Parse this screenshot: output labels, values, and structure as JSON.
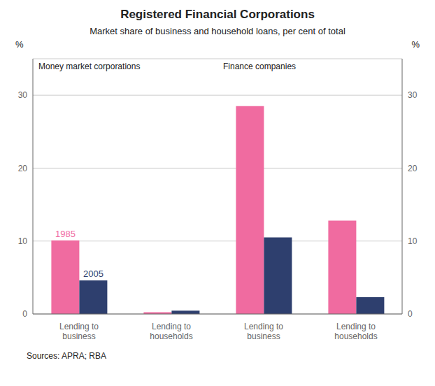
{
  "title": "Registered Financial Corporations",
  "subtitle": "Market share of business and household loans, per cent of total",
  "annotations": [
    "Sources: APRA; RBA"
  ],
  "chart_data": [
    {
      "type": "bar",
      "title": "Money market corporations",
      "categories": [
        "Lending to\nbusiness",
        "Lending to\nhouseholds"
      ],
      "series": [
        {
          "name": "1985",
          "color": "#F06BA0",
          "values": [
            10.1,
            0.25
          ]
        },
        {
          "name": "2005",
          "color": "#2E3F6E",
          "values": [
            4.6,
            0.45
          ]
        }
      ],
      "ylabel": "%",
      "ylim": [
        0,
        35
      ],
      "yticks": [
        0,
        10,
        20,
        30
      ],
      "grid": true
    },
    {
      "type": "bar",
      "title": "Finance companies",
      "categories": [
        "Lending to\nbusiness",
        "Lending to\nhouseholds"
      ],
      "series": [
        {
          "color": "#F06BA0",
          "values": [
            28.5,
            12.8
          ]
        },
        {
          "color": "#2E3F6E",
          "values": [
            10.5,
            2.3
          ]
        }
      ],
      "ylabel": "%",
      "ylim": [
        0,
        35
      ],
      "yticks": [
        0,
        10,
        20,
        30
      ],
      "grid": true
    }
  ]
}
